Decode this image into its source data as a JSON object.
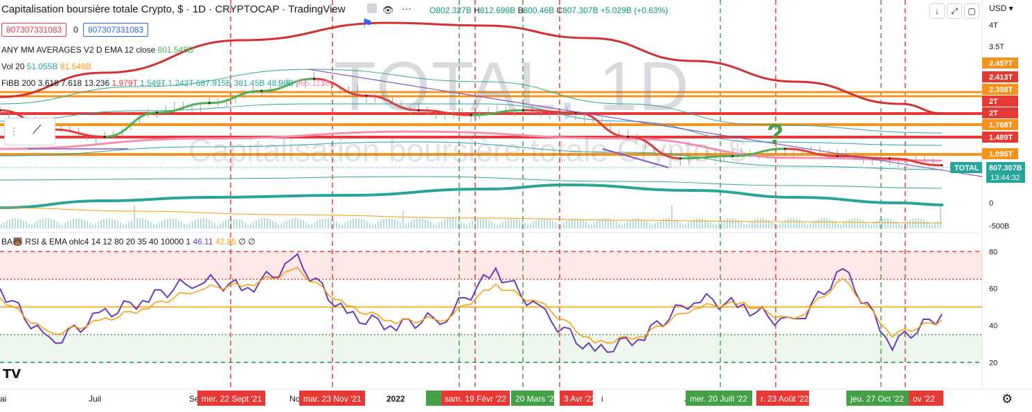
{
  "header": {
    "title": "Capitalisation boursière totale Crypto, $ · 1D · CRYPTOCAP · TradingView",
    "ohlc": {
      "o": "O802.327B",
      "h_label": "H",
      "h": "812.698B",
      "l_label": "B",
      "l": "800.46B",
      "c_label": "C",
      "c": "807.307B",
      "chg": "+5.029B (+0.63%)"
    },
    "currency": "USD",
    "box_sell": "807307331083",
    "box_sep": "0",
    "box_buy": "807307331083",
    "watermark_big": "TOTAL, 1D",
    "watermark_sub": "Capitalisation boursière totale Crypto, $",
    "q_mark": "?"
  },
  "legends": {
    "ema": {
      "name": "ANY MM AVERAGES V2 D EMA 12 close",
      "val": "801.548B"
    },
    "vol": {
      "name": "Vol 20",
      "v1": "51.055B",
      "v2": "81.548B"
    },
    "fibb": {
      "name": "FiBB 200 3.618 7.618 13.236",
      "v1": "1.979T",
      "v2": "1.549T",
      "v3": "1.242T",
      "v4": "687.915B",
      "v5": "381.45B",
      "v6": "48.98B",
      "v7": "965.113B"
    },
    "rsi": {
      "name": "BA🐻 RSI & EMA ohlc4 14 12 80 20 35 40 10000 1",
      "v1": "46.11",
      "v2": "42.85",
      "v3": "∅",
      "v4": "∅"
    }
  },
  "price_axis": [
    "4T",
    "3.5T",
    "2.5T",
    "2.457T",
    "2.413T",
    "2.398T",
    "2T",
    "2T",
    "1.768T",
    "1.489T",
    "1.095T",
    "0",
    "-500B"
  ],
  "price_tags": [
    {
      "label": "2.457T",
      "color": "#f7931a"
    },
    {
      "label": "2.413T",
      "color": "#e53935"
    },
    {
      "label": "2.398T",
      "color": "#f7931a"
    },
    {
      "label": "2T",
      "color": "#e53935"
    },
    {
      "label": "2T",
      "color": "#e53935"
    },
    {
      "label": "1.768T",
      "color": "#f7931a"
    },
    {
      "label": "1.489T",
      "color": "#e53935"
    },
    {
      "label": "1.095T",
      "color": "#f7931a"
    }
  ],
  "last_price": {
    "symbol": "TOTAL",
    "value": "807.307B",
    "countdown": "13:44:32"
  },
  "rsi_axis": [
    "80",
    "60",
    "40",
    "20"
  ],
  "time_axis": [
    "Juil",
    "2022"
  ],
  "time_edge": "ai",
  "date_tags": [
    {
      "label": "mer. 22 Sept '21",
      "color": "#e53935"
    },
    {
      "label": "mar. 23 Nov '21",
      "color": "#e53935"
    },
    {
      "label": "sam. 19 Févr '22",
      "color": "#e53935"
    },
    {
      "label": "20 Mars '22",
      "color": "#43a047"
    },
    {
      "label": "3 Avr '22",
      "color": "#e53935"
    },
    {
      "label": "mer. 20 Juill '22",
      "color": "#43a047"
    },
    {
      "label": "r. 23 Août '22",
      "color": "#e53935"
    },
    {
      "label": "jeu. 27 Oct '22",
      "color": "#43a047"
    },
    {
      "label": "ov '22",
      "color": "#e53935"
    }
  ],
  "partial_time_labels": [
    "Se",
    "No",
    "je",
    "i",
    "J"
  ],
  "colors": {
    "ema_green": "#4caf50",
    "ema_red": "#e53935",
    "rsi": "#673ab7",
    "rsi_ema": "#ff9800",
    "teal": "#26a69a"
  },
  "chart_data": [
    {
      "type": "line",
      "title": "Capitalisation boursière totale Crypto, $",
      "ylabel": "USD",
      "ylim": [
        -500,
        4000
      ],
      "x": [
        "2021-05",
        "2021-06",
        "2021-07",
        "2021-08",
        "2021-09",
        "2021-10",
        "2021-11",
        "2021-12",
        "2022-01",
        "2022-02",
        "2022-03",
        "2022-04",
        "2022-05",
        "2022-06",
        "2022-07",
        "2022-08",
        "2022-09",
        "2022-10",
        "2022-11"
      ],
      "series": [
        {
          "name": "TOTAL",
          "values": [
            1950,
            1550,
            1400,
            1900,
            2100,
            2350,
            2600,
            2250,
            1950,
            1850,
            1950,
            1900,
            1400,
            950,
            1000,
            1150,
            1000,
            950,
            807
          ]
        }
      ]
    },
    {
      "type": "line",
      "title": "RSI & EMA",
      "ylim": [
        10,
        85
      ],
      "series": [
        {
          "name": "RSI",
          "values": [
            60,
            30,
            45,
            55,
            65,
            60,
            75,
            45,
            40,
            45,
            70,
            45,
            25,
            35,
            55,
            50,
            40,
            70,
            30,
            46.11
          ]
        },
        {
          "name": "EMA",
          "values": [
            55,
            35,
            42,
            50,
            60,
            62,
            70,
            50,
            42,
            44,
            62,
            50,
            30,
            35,
            50,
            52,
            42,
            65,
            35,
            42.85
          ]
        }
      ],
      "levels": [
        80,
        65,
        50,
        35,
        20
      ]
    }
  ]
}
